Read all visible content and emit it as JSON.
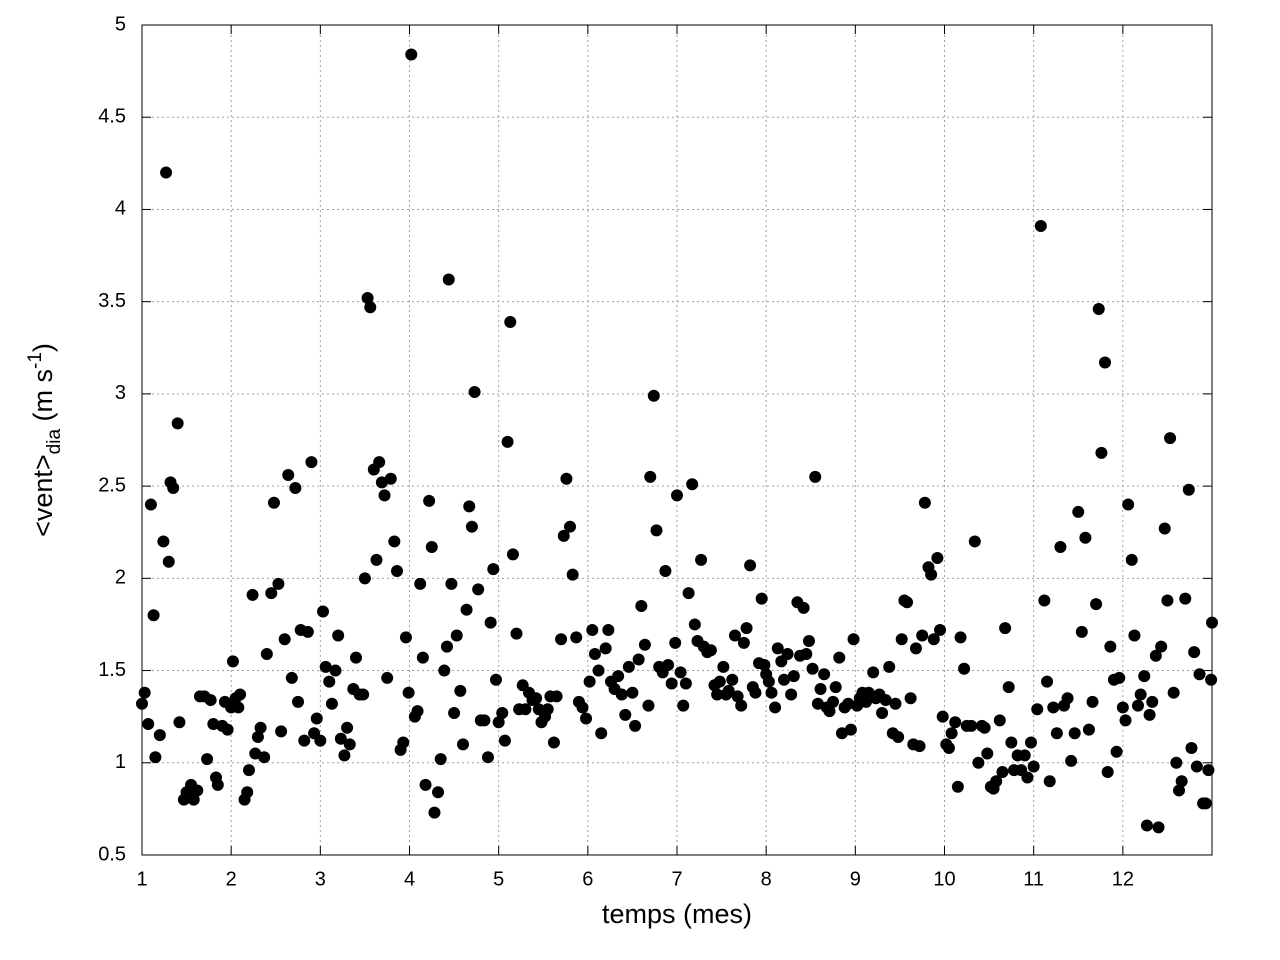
{
  "chart_data": {
    "type": "scatter",
    "xlabel": "temps (mes)",
    "ylabel": {
      "base": "<vent>",
      "sub": "dia",
      "unit": " (m s",
      "sup": "-1",
      "close": ")"
    },
    "xlim": [
      1,
      13
    ],
    "xticks": [
      1,
      2,
      3,
      4,
      5,
      6,
      7,
      8,
      9,
      10,
      11,
      12
    ],
    "ylim": [
      0.5,
      5
    ],
    "yticks": [
      0.5,
      1,
      1.5,
      2,
      2.5,
      3,
      3.5,
      4,
      4.5,
      5
    ],
    "grid": true,
    "color": "#000000",
    "x": [
      1.0,
      1.03,
      1.07,
      1.1,
      1.13,
      1.15,
      1.2,
      1.24,
      1.27,
      1.3,
      1.32,
      1.35,
      1.4,
      1.42,
      1.47,
      1.5,
      1.55,
      1.58,
      1.62,
      1.65,
      1.7,
      1.73,
      1.77,
      1.8,
      1.83,
      1.85,
      1.9,
      1.93,
      1.96,
      2.0,
      2.02,
      2.05,
      2.08,
      2.1,
      2.15,
      2.18,
      2.2,
      2.24,
      2.27,
      2.3,
      2.33,
      2.37,
      2.4,
      2.45,
      2.48,
      2.53,
      2.56,
      2.6,
      2.64,
      2.68,
      2.72,
      2.75,
      2.78,
      2.82,
      2.86,
      2.9,
      2.93,
      2.96,
      3.0,
      3.03,
      3.06,
      3.1,
      3.13,
      3.17,
      3.2,
      3.23,
      3.27,
      3.3,
      3.33,
      3.37,
      3.4,
      3.44,
      3.48,
      3.5,
      3.53,
      3.56,
      3.6,
      3.63,
      3.66,
      3.69,
      3.72,
      3.75,
      3.79,
      3.83,
      3.86,
      3.9,
      3.93,
      3.96,
      3.99,
      4.02,
      4.06,
      4.09,
      4.12,
      4.15,
      4.18,
      4.22,
      4.25,
      4.28,
      4.32,
      4.35,
      4.39,
      4.42,
      4.44,
      4.47,
      4.5,
      4.53,
      4.57,
      4.6,
      4.64,
      4.67,
      4.7,
      4.73,
      4.77,
      4.8,
      4.84,
      4.88,
      4.91,
      4.94,
      4.97,
      5.0,
      5.04,
      5.07,
      5.1,
      5.13,
      5.16,
      5.2,
      5.23,
      5.27,
      5.3,
      5.34,
      5.38,
      5.42,
      5.45,
      5.48,
      5.52,
      5.55,
      5.58,
      5.62,
      5.65,
      5.7,
      5.73,
      5.76,
      5.8,
      5.83,
      5.87,
      5.9,
      5.94,
      5.98,
      6.02,
      6.05,
      6.08,
      6.12,
      6.15,
      6.2,
      6.23,
      6.26,
      6.3,
      6.34,
      6.38,
      6.42,
      6.46,
      6.5,
      6.53,
      6.57,
      6.6,
      6.64,
      6.68,
      6.7,
      6.74,
      6.77,
      6.8,
      6.84,
      6.87,
      6.9,
      6.94,
      6.98,
      7.0,
      7.04,
      7.07,
      7.1,
      7.13,
      7.17,
      7.2,
      7.23,
      7.27,
      7.3,
      7.34,
      7.38,
      7.42,
      7.45,
      7.48,
      7.52,
      7.55,
      7.58,
      7.62,
      7.65,
      7.68,
      7.72,
      7.75,
      7.78,
      7.82,
      7.85,
      7.88,
      7.92,
      7.95,
      7.98,
      8.0,
      8.03,
      8.06,
      8.1,
      8.13,
      8.17,
      8.2,
      8.24,
      8.28,
      8.31,
      8.35,
      8.38,
      8.42,
      8.45,
      8.48,
      8.52,
      8.55,
      8.58,
      8.61,
      8.65,
      8.68,
      8.71,
      8.75,
      8.78,
      8.82,
      8.85,
      8.88,
      8.92,
      8.95,
      8.98,
      9.02,
      9.05,
      9.08,
      9.12,
      9.15,
      9.2,
      9.23,
      9.27,
      9.3,
      9.34,
      9.38,
      9.42,
      9.45,
      9.48,
      9.52,
      9.55,
      9.58,
      9.62,
      9.65,
      9.68,
      9.72,
      9.75,
      9.78,
      9.82,
      9.85,
      9.88,
      9.92,
      9.95,
      9.98,
      10.02,
      10.05,
      10.08,
      10.12,
      10.15,
      10.18,
      10.22,
      10.25,
      10.3,
      10.34,
      10.38,
      10.42,
      10.45,
      10.48,
      10.52,
      10.55,
      10.58,
      10.62,
      10.65,
      10.68,
      10.72,
      10.75,
      10.78,
      10.82,
      10.86,
      10.9,
      10.93,
      10.97,
      11.0,
      11.04,
      11.08,
      11.12,
      11.15,
      11.18,
      11.22,
      11.26,
      11.3,
      11.34,
      11.38,
      11.42,
      11.46,
      11.5,
      11.54,
      11.58,
      11.62,
      11.66,
      11.7,
      11.73,
      11.76,
      11.8,
      11.83,
      11.86,
      11.9,
      11.93,
      11.96,
      12.0,
      12.03,
      12.06,
      12.1,
      12.13,
      12.17,
      12.2,
      12.24,
      12.27,
      12.3,
      12.33,
      12.37,
      12.4,
      12.43,
      12.47,
      12.5,
      12.53,
      12.57,
      12.6,
      12.63,
      12.66,
      12.7,
      12.74,
      12.77,
      12.8,
      12.83,
      12.86,
      12.9,
      12.93,
      12.96,
      12.99,
      13.0
    ],
    "values": [
      1.32,
      1.38,
      1.21,
      2.4,
      1.8,
      1.03,
      1.15,
      2.2,
      4.2,
      2.09,
      2.52,
      2.49,
      2.84,
      1.22,
      0.8,
      0.84,
      0.88,
      0.8,
      0.85,
      1.36,
      1.36,
      1.02,
      1.34,
      1.21,
      0.92,
      0.88,
      1.2,
      1.33,
      1.18,
      1.3,
      1.55,
      1.35,
      1.3,
      1.37,
      0.8,
      0.84,
      0.96,
      1.91,
      1.05,
      1.14,
      1.19,
      1.03,
      1.59,
      1.92,
      2.41,
      1.97,
      1.17,
      1.67,
      2.56,
      1.46,
      2.49,
      1.33,
      1.72,
      1.12,
      1.71,
      2.63,
      1.16,
      1.24,
      1.12,
      1.82,
      1.52,
      1.44,
      1.32,
      1.5,
      1.69,
      1.13,
      1.04,
      1.19,
      1.1,
      1.4,
      1.57,
      1.37,
      1.37,
      2.0,
      3.52,
      3.47,
      2.59,
      2.1,
      2.63,
      2.52,
      2.45,
      1.46,
      2.54,
      2.2,
      2.04,
      1.07,
      1.11,
      1.68,
      1.38,
      4.84,
      1.25,
      1.28,
      1.97,
      1.57,
      0.88,
      2.42,
      2.17,
      0.73,
      0.84,
      1.02,
      1.5,
      1.63,
      3.62,
      1.97,
      1.27,
      1.69,
      1.39,
      1.1,
      1.83,
      2.39,
      2.28,
      3.01,
      1.94,
      1.23,
      1.23,
      1.03,
      1.76,
      2.05,
      1.45,
      1.22,
      1.27,
      1.12,
      2.74,
      3.39,
      2.13,
      1.7,
      1.29,
      1.42,
      1.29,
      1.38,
      1.34,
      1.35,
      1.29,
      1.22,
      1.25,
      1.29,
      1.36,
      1.11,
      1.36,
      1.67,
      2.23,
      2.54,
      2.28,
      2.02,
      1.68,
      1.33,
      1.3,
      1.24,
      1.44,
      1.72,
      1.59,
      1.5,
      1.16,
      1.62,
      1.72,
      1.44,
      1.4,
      1.47,
      1.37,
      1.26,
      1.52,
      1.38,
      1.2,
      1.56,
      1.85,
      1.64,
      1.31,
      2.55,
      2.99,
      2.26,
      1.52,
      1.49,
      2.04,
      1.53,
      1.43,
      1.65,
      2.45,
      1.49,
      1.31,
      1.43,
      1.92,
      2.51,
      1.75,
      1.66,
      2.1,
      1.63,
      1.6,
      1.61,
      1.42,
      1.37,
      1.44,
      1.52,
      1.37,
      1.39,
      1.45,
      1.69,
      1.36,
      1.31,
      1.65,
      1.73,
      2.07,
      1.41,
      1.38,
      1.54,
      1.89,
      1.53,
      1.48,
      1.44,
      1.38,
      1.3,
      1.62,
      1.55,
      1.45,
      1.59,
      1.37,
      1.47,
      1.87,
      1.58,
      1.84,
      1.59,
      1.66,
      1.51,
      2.55,
      1.32,
      1.4,
      1.48,
      1.3,
      1.28,
      1.33,
      1.41,
      1.57,
      1.16,
      1.3,
      1.32,
      1.18,
      1.67,
      1.31,
      1.35,
      1.38,
      1.33,
      1.38,
      1.49,
      1.35,
      1.37,
      1.27,
      1.34,
      1.52,
      1.16,
      1.32,
      1.14,
      1.67,
      1.88,
      1.87,
      1.35,
      1.1,
      1.62,
      1.09,
      1.69,
      2.41,
      2.06,
      2.02,
      1.67,
      2.11,
      1.72,
      1.25,
      1.1,
      1.08,
      1.16,
      1.22,
      0.87,
      1.68,
      1.51,
      1.2,
      1.2,
      2.2,
      1.0,
      1.2,
      1.19,
      1.05,
      0.87,
      0.86,
      0.9,
      1.23,
      0.95,
      1.73,
      1.41,
      1.11,
      0.96,
      1.04,
      0.96,
      1.04,
      0.92,
      1.11,
      0.98,
      1.29,
      3.91,
      1.88,
      1.44,
      0.9,
      1.3,
      1.16,
      2.17,
      1.31,
      1.35,
      1.01,
      1.16,
      2.36,
      1.71,
      2.22,
      1.18,
      1.33,
      1.86,
      3.46,
      2.68,
      3.17,
      0.95,
      1.63,
      1.45,
      1.06,
      1.46,
      1.3,
      1.23,
      2.4,
      2.1,
      1.69,
      1.31,
      1.37,
      1.47,
      0.66,
      1.26,
      1.33,
      1.58,
      0.65,
      1.63,
      2.27,
      1.88,
      2.76,
      1.38,
      1.0,
      0.85,
      0.9,
      1.89,
      2.48,
      1.08,
      1.6,
      0.98,
      1.48,
      0.78,
      0.78,
      0.96,
      1.45,
      1.76
    ]
  }
}
